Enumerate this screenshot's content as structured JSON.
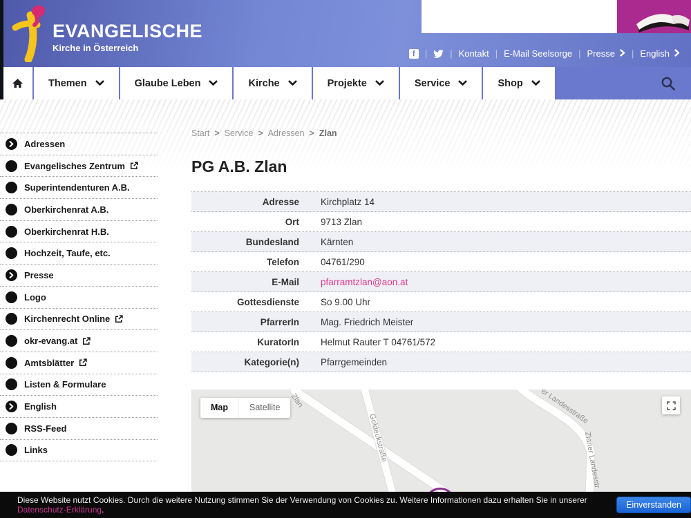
{
  "brand": {
    "title": "EVANGELISCHE",
    "subtitle": "Kirche in Österreich"
  },
  "utility_nav": {
    "separator": "|",
    "items": [
      {
        "label": "Kontakt",
        "chevron": false
      },
      {
        "label": "E-Mail Seelsorge",
        "chevron": false
      },
      {
        "label": "Presse",
        "chevron": true
      },
      {
        "label": "English",
        "chevron": true
      }
    ]
  },
  "main_nav": {
    "items": [
      {
        "label": "Themen"
      },
      {
        "label": "Glaube Leben"
      },
      {
        "label": "Kirche"
      },
      {
        "label": "Projekte"
      },
      {
        "label": "Service"
      },
      {
        "label": "Shop"
      }
    ]
  },
  "sidebar": {
    "items": [
      {
        "label": "Adressen",
        "icon": "chevron",
        "external": false
      },
      {
        "label": "Evangelisches Zentrum",
        "icon": "dot",
        "external": true
      },
      {
        "label": "Superintendenturen A.B.",
        "icon": "dot",
        "external": false
      },
      {
        "label": "Oberkirchenrat A.B.",
        "icon": "dot",
        "external": false
      },
      {
        "label": "Oberkirchenrat H.B.",
        "icon": "dot",
        "external": false
      },
      {
        "label": "Hochzeit, Taufe, etc.",
        "icon": "dot",
        "external": false
      },
      {
        "label": "Presse",
        "icon": "chevron",
        "external": false
      },
      {
        "label": "Logo",
        "icon": "dot",
        "external": false
      },
      {
        "label": "Kirchenrecht Online",
        "icon": "dot",
        "external": true
      },
      {
        "label": "okr-evang.at",
        "icon": "dot",
        "external": true
      },
      {
        "label": "Amtsblätter",
        "icon": "dot",
        "external": true
      },
      {
        "label": "Listen & Formulare",
        "icon": "dot",
        "external": false
      },
      {
        "label": "English",
        "icon": "chevron",
        "external": false
      },
      {
        "label": "RSS-Feed",
        "icon": "dot",
        "external": false
      },
      {
        "label": "Links",
        "icon": "dot",
        "external": false
      }
    ]
  },
  "breadcrumb": {
    "separator": ">",
    "items": [
      {
        "label": "Start",
        "current": false
      },
      {
        "label": "Service",
        "current": false
      },
      {
        "label": "Adressen",
        "current": false
      },
      {
        "label": "Zlan",
        "current": true
      }
    ]
  },
  "page": {
    "title": "PG A.B. Zlan"
  },
  "details": {
    "rows": [
      {
        "label": "Adresse",
        "value": "Kirchplatz 14",
        "link": false
      },
      {
        "label": "Ort",
        "value": "9713 Zlan",
        "link": false
      },
      {
        "label": "Bundesland",
        "value": "Kärnten",
        "link": false
      },
      {
        "label": "Telefon",
        "value": "04761/290",
        "link": false
      },
      {
        "label": "E-Mail",
        "value": "pfarramtzlan@aon.at",
        "link": true
      },
      {
        "label": "Gottesdienste",
        "value": "So 9.00 Uhr",
        "link": false
      },
      {
        "label": "PfarrerIn",
        "value": "Mag. Friedrich Meister",
        "link": false
      },
      {
        "label": "KuratorIn",
        "value": "Helmut Rauter T 04761/572",
        "link": false
      },
      {
        "label": "Kategorie(n)",
        "value": "Pfarrgemeinden",
        "link": false
      }
    ]
  },
  "map": {
    "controls": {
      "map": "Map",
      "satellite": "Satellite"
    },
    "street_labels": [
      {
        "text": "Zlan"
      },
      {
        "text": "Goldeckstraße"
      },
      {
        "text": "er Landesstraße"
      },
      {
        "text": "Zlaner Landesstr"
      }
    ]
  },
  "cookie": {
    "message": "Diese Website nutzt Cookies. Durch die weitere Nutzung stimmen Sie der Verwendung von Cookies zu. Weitere Informationen dazu erhalten Sie in unserer",
    "link_label": "Datenschutz-Erklärung",
    "suffix": ".",
    "button_label": "Einverstanden"
  },
  "colors": {
    "accent_pink": "#e0368c",
    "privacy_link_pink": "#c8358f",
    "nav_blue": "#6a78cd",
    "banner_magenta": "#ab2a8f",
    "cookie_button_blue": "#1e6fdc",
    "map_marker_purple": "#8a3191"
  }
}
